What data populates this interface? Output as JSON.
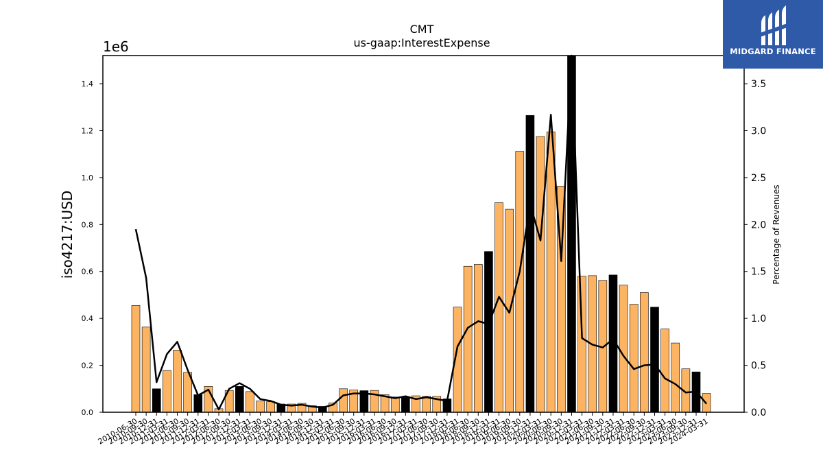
{
  "brand": {
    "name": "MIDGARD FINANCE",
    "bg_color": "#2f5aa8"
  },
  "chart_data": {
    "type": "bar",
    "title": "CMT",
    "subtitle": "us-gaap:InterestExpense",
    "ylabel": "iso4217:USD",
    "y_offset_text": "1e6",
    "y2label": "Percentage of Revenues",
    "ylim": [
      0,
      1.52
    ],
    "y2lim": [
      0,
      3.8
    ],
    "yticks": [
      "0.0",
      "0.2",
      "0.4",
      "0.6",
      "0.8",
      "1.0",
      "1.2",
      "1.4"
    ],
    "y2ticks": [
      "0.0",
      "0.5",
      "1.0",
      "1.5",
      "2.0",
      "2.5",
      "3.0",
      "3.5"
    ],
    "colors": {
      "bar": "#fdb462",
      "bar_highlight": "#000000",
      "line": "#000000"
    },
    "categories": [
      "2010-06-30",
      "2010-09-30",
      "2010-12-31",
      "2011-03-31",
      "2011-06-30",
      "2011-09-30",
      "2011-12-31",
      "2012-03-31",
      "2012-06-30",
      "2012-09-30",
      "2012-12-31",
      "2013-03-31",
      "2013-06-30",
      "2013-09-30",
      "2013-12-31",
      "2014-03-31",
      "2014-06-30",
      "2014-09-30",
      "2014-12-31",
      "2015-03-31",
      "2015-06-30",
      "2015-09-30",
      "2015-12-31",
      "2016-03-31",
      "2016-06-30",
      "2016-09-30",
      "2016-12-31",
      "2017-03-31",
      "2017-06-30",
      "2017-09-30",
      "2017-12-31",
      "2018-03-31",
      "2018-06-30",
      "2018-09-30",
      "2018-12-31",
      "2019-03-31",
      "2019-06-30",
      "2019-09-30",
      "2019-12-31",
      "2020-03-31",
      "2020-06-30",
      "2020-09-30",
      "2020-12-31",
      "2021-03-31",
      "2021-06-30",
      "2021-09-30",
      "2021-12-31",
      "2022-03-31",
      "2022-06-30",
      "2022-09-30",
      "2022-12-31",
      "2023-03-31",
      "2023-06-30",
      "2023-09-30",
      "2023-12-31",
      "2024-03-31"
    ],
    "series": [
      {
        "kind": "bar",
        "values": [
          0.455,
          0.363,
          0.1,
          0.178,
          0.265,
          0.17,
          0.075,
          0.11,
          0.015,
          0.093,
          0.11,
          0.088,
          0.048,
          0.045,
          0.035,
          0.035,
          0.038,
          0.028,
          0.025,
          0.04,
          0.1,
          0.095,
          0.092,
          0.093,
          0.075,
          0.065,
          0.065,
          0.07,
          0.068,
          0.068,
          0.057,
          0.448,
          0.622,
          0.63,
          0.685,
          0.893,
          0.865,
          1.112,
          1.265,
          1.175,
          1.195,
          0.963,
          1.52,
          0.58,
          0.582,
          0.562,
          0.585,
          0.542,
          0.46,
          0.51,
          0.448,
          0.355,
          0.295,
          0.185,
          0.172,
          0.08
        ],
        "highlight": [
          false,
          false,
          true,
          false,
          false,
          false,
          true,
          false,
          false,
          false,
          true,
          false,
          false,
          false,
          true,
          false,
          false,
          false,
          true,
          false,
          false,
          false,
          true,
          false,
          false,
          false,
          true,
          false,
          false,
          false,
          true,
          false,
          false,
          false,
          true,
          false,
          false,
          false,
          true,
          false,
          false,
          false,
          true,
          false,
          false,
          false,
          true,
          false,
          false,
          false,
          true,
          false,
          false,
          false,
          true,
          false
        ]
      },
      {
        "kind": "line",
        "axis": "right",
        "values": [
          1.95,
          1.43,
          0.32,
          0.62,
          0.75,
          0.45,
          0.18,
          0.24,
          0.03,
          0.25,
          0.31,
          0.25,
          0.14,
          0.12,
          0.08,
          0.07,
          0.08,
          0.06,
          0.05,
          0.08,
          0.18,
          0.2,
          0.2,
          0.19,
          0.17,
          0.15,
          0.17,
          0.14,
          0.16,
          0.14,
          0.12,
          0.7,
          0.9,
          0.97,
          0.94,
          1.23,
          1.06,
          1.5,
          2.22,
          1.83,
          3.17,
          1.61,
          3.8,
          0.79,
          0.72,
          0.69,
          0.78,
          0.6,
          0.46,
          0.5,
          0.51,
          0.36,
          0.3,
          0.21,
          0.22,
          0.09
        ]
      }
    ]
  }
}
